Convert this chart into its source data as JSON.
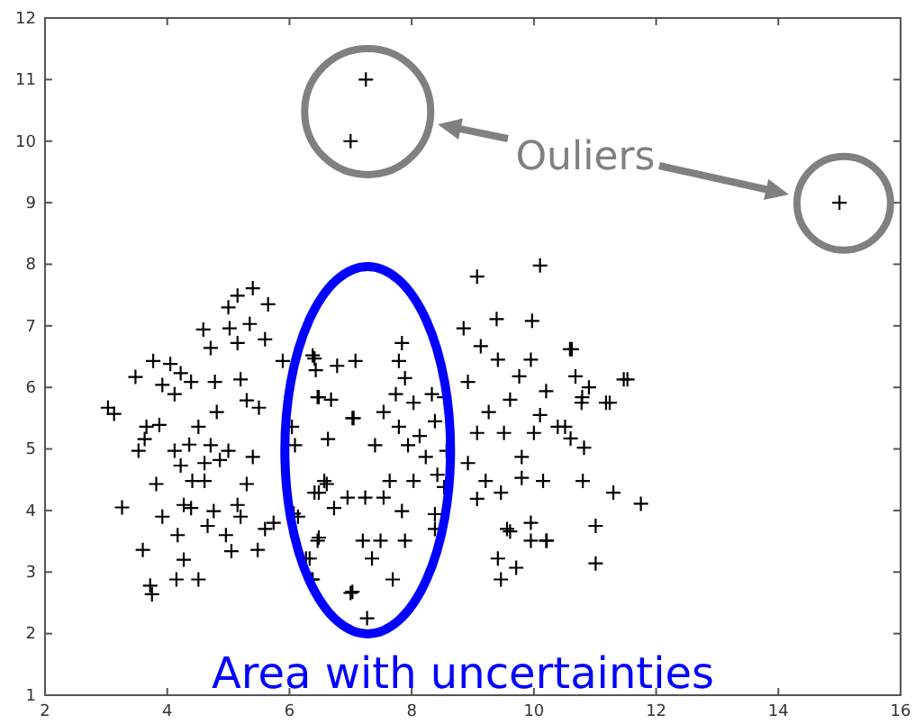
{
  "chart_data": {
    "type": "scatter",
    "marker": "cross",
    "grid": false,
    "tick_labels": "xy",
    "xlim": [
      2,
      16
    ],
    "ylim": [
      1,
      12
    ],
    "xticks": [
      2,
      4,
      6,
      8,
      10,
      12,
      14,
      16
    ],
    "yticks": [
      1,
      2,
      3,
      4,
      5,
      6,
      7,
      8,
      9,
      10,
      11,
      12
    ],
    "annotations": [
      "Ouliers",
      "Area with uncertainties"
    ],
    "series": [
      {
        "color": "#000000",
        "x": [
          3.03,
          3.13,
          3.26,
          3.48,
          3.6,
          3.72,
          3.75,
          3.77,
          3.63,
          3.66,
          3.87,
          3.82,
          4.05,
          4.12,
          4.17,
          4.15,
          4.27,
          4.22,
          4.27,
          4.39,
          4.36,
          4.39,
          4.51,
          4.59,
          4.71,
          4.61,
          4.66,
          4.76,
          4.81,
          4.78,
          4.96,
          5.05,
          5.02,
          5.0,
          5.15,
          5.4,
          5.65,
          5.35,
          5.6,
          5.15,
          5.2,
          5.3,
          5.5,
          5.4,
          5.3,
          5.48,
          5.6,
          5.74,
          5.0,
          4.86,
          5.15,
          5.2,
          4.61,
          3.92,
          4.12,
          4.41,
          4.71,
          3.92,
          4.22,
          3.53,
          4.51,
          5.89,
          6.38,
          6.43,
          6.04,
          6.09,
          6.14,
          6.33,
          6.38,
          6.48,
          6.48,
          6.57,
          6.63,
          6.48,
          6.73,
          7.03,
          7.08,
          7.03,
          10.1,
          9.07,
          9.39,
          8.85,
          9.97,
          9.13,
          9.41,
          9.95,
          10.59,
          8.92,
          9.76,
          10.2,
          10.79,
          11.18,
          11.47,
          7.84,
          7.79,
          7.89,
          6.41,
          6.78,
          6.46,
          6.68,
          7.05,
          7.54,
          7.74,
          8.03,
          8.33,
          8.53,
          8.38,
          7.79,
          7.4,
          7.94,
          8.13,
          8.23,
          8.57,
          7.64,
          8.03,
          8.42,
          6.95,
          7.24,
          7.54,
          6.61,
          6.41,
          7.84,
          8.38,
          8.53,
          8.38,
          7.2,
          7.49,
          7.89,
          7.35,
          7.69,
          7.0,
          7.27,
          6.46,
          6.27,
          6.36,
          6.07,
          9.07,
          8.92,
          9.21,
          9.07,
          9.46,
          9.56,
          9.61,
          9.41,
          9.46,
          9.71,
          9.95,
          9.95,
          10.2,
          9.8,
          10.15,
          9.8,
          9.51,
          10.0,
          10.39,
          9.26,
          9.61,
          10.1,
          10.62,
          10.68,
          11.53,
          10.9,
          10.78,
          11.24,
          10.51,
          10.6,
          10.82,
          10.8,
          11.3,
          11.75,
          11.01,
          11.01,
          10.21,
          7.0,
          7.25,
          15.0
        ],
        "values": [
          5.67,
          5.57,
          4.05,
          6.17,
          3.36,
          2.78,
          2.64,
          6.43,
          5.16,
          5.36,
          5.39,
          4.43,
          6.38,
          5.89,
          3.6,
          2.88,
          3.2,
          4.73,
          4.09,
          4.04,
          5.07,
          6.09,
          2.88,
          6.94,
          6.64,
          4.77,
          3.75,
          3.99,
          5.6,
          6.09,
          3.6,
          3.34,
          6.96,
          7.3,
          7.49,
          7.61,
          7.35,
          7.03,
          6.78,
          6.72,
          6.13,
          5.79,
          5.67,
          4.87,
          4.43,
          3.36,
          3.7,
          3.8,
          4.97,
          4.82,
          4.09,
          3.9,
          4.48,
          3.9,
          4.97,
          4.48,
          5.06,
          6.04,
          6.23,
          4.97,
          5.36,
          6.43,
          6.52,
          6.28,
          5.36,
          5.06,
          3.9,
          3.22,
          2.88,
          3.56,
          4.29,
          4.48,
          5.16,
          5.84,
          4.04,
          2.68,
          6.43,
          5.5,
          7.98,
          7.8,
          7.11,
          6.96,
          7.08,
          6.67,
          6.45,
          6.45,
          6.62,
          6.09,
          6.18,
          5.94,
          5.84,
          5.75,
          6.13,
          6.72,
          6.43,
          6.15,
          6.47,
          6.35,
          5.84,
          5.8,
          5.5,
          5.6,
          5.89,
          5.75,
          5.89,
          5.84,
          5.45,
          5.36,
          5.06,
          5.06,
          5.21,
          4.87,
          4.97,
          4.48,
          4.48,
          4.58,
          4.21,
          4.21,
          4.21,
          4.43,
          4.29,
          3.99,
          3.94,
          4.38,
          3.7,
          3.51,
          3.51,
          3.51,
          3.22,
          2.88,
          2.66,
          2.25,
          3.51,
          3.22,
          2.88,
          3.95,
          5.26,
          4.77,
          4.48,
          4.19,
          4.29,
          3.7,
          3.66,
          3.22,
          2.88,
          3.07,
          3.8,
          3.51,
          3.51,
          4.53,
          4.48,
          4.87,
          5.26,
          5.26,
          5.36,
          5.6,
          5.8,
          5.55,
          6.62,
          6.18,
          6.13,
          6.0,
          5.75,
          5.75,
          5.36,
          5.17,
          5.02,
          4.48,
          4.29,
          4.11,
          3.75,
          3.14,
          3.51,
          10.0,
          11.0,
          9.0
        ]
      }
    ]
  }
}
